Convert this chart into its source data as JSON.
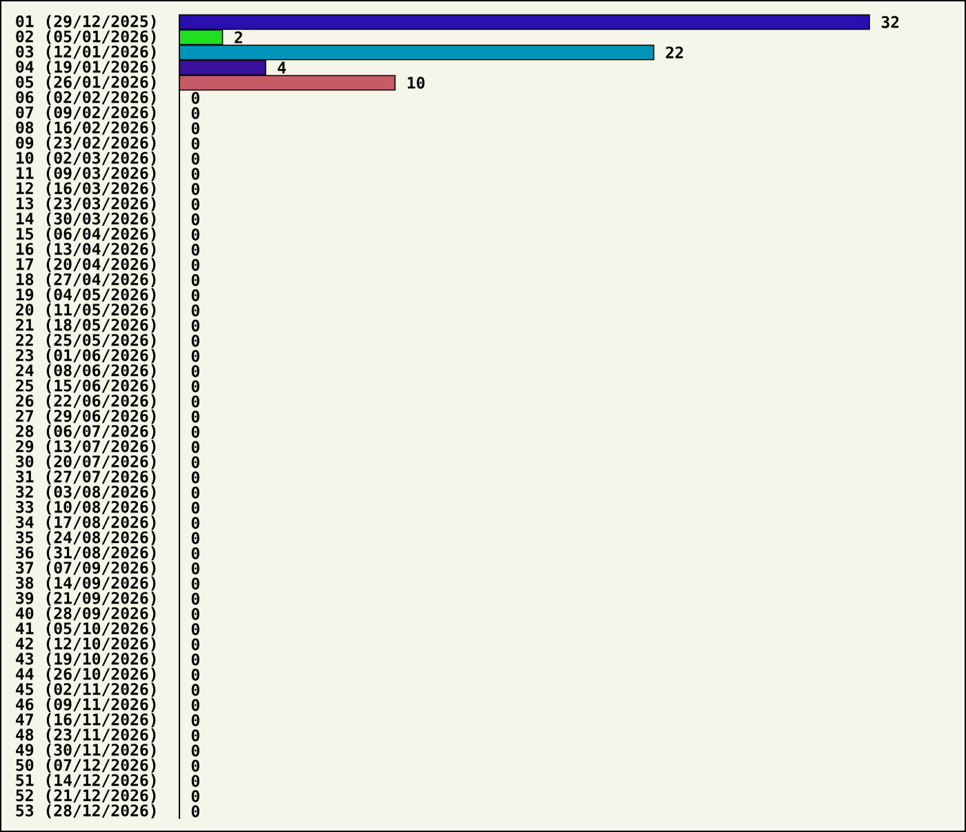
{
  "chart_data": {
    "type": "bar",
    "orientation": "horizontal",
    "data_labels": true,
    "tick_labels": "y",
    "categories": [
      "01 (29/12/2025)",
      "02 (05/01/2026)",
      "03 (12/01/2026)",
      "04 (19/01/2026)",
      "05 (26/01/2026)",
      "06 (02/02/2026)",
      "07 (09/02/2026)",
      "08 (16/02/2026)",
      "09 (23/02/2026)",
      "10 (02/03/2026)",
      "11 (09/03/2026)",
      "12 (16/03/2026)",
      "13 (23/03/2026)",
      "14 (30/03/2026)",
      "15 (06/04/2026)",
      "16 (13/04/2026)",
      "17 (20/04/2026)",
      "18 (27/04/2026)",
      "19 (04/05/2026)",
      "20 (11/05/2026)",
      "21 (18/05/2026)",
      "22 (25/05/2026)",
      "23 (01/06/2026)",
      "24 (08/06/2026)",
      "25 (15/06/2026)",
      "26 (22/06/2026)",
      "27 (29/06/2026)",
      "28 (06/07/2026)",
      "29 (13/07/2026)",
      "30 (20/07/2026)",
      "31 (27/07/2026)",
      "32 (03/08/2026)",
      "33 (10/08/2026)",
      "34 (17/08/2026)",
      "35 (24/08/2026)",
      "36 (31/08/2026)",
      "37 (07/09/2026)",
      "38 (14/09/2026)",
      "39 (21/09/2026)",
      "40 (28/09/2026)",
      "41 (05/10/2026)",
      "42 (12/10/2026)",
      "43 (19/10/2026)",
      "44 (26/10/2026)",
      "45 (02/11/2026)",
      "46 (09/11/2026)",
      "47 (16/11/2026)",
      "48 (23/11/2026)",
      "49 (30/11/2026)",
      "50 (07/12/2026)",
      "51 (14/12/2026)",
      "52 (21/12/2026)",
      "53 (28/12/2026)"
    ],
    "values": [
      32,
      2,
      22,
      4,
      10,
      0,
      0,
      0,
      0,
      0,
      0,
      0,
      0,
      0,
      0,
      0,
      0,
      0,
      0,
      0,
      0,
      0,
      0,
      0,
      0,
      0,
      0,
      0,
      0,
      0,
      0,
      0,
      0,
      0,
      0,
      0,
      0,
      0,
      0,
      0,
      0,
      0,
      0,
      0,
      0,
      0,
      0,
      0,
      0,
      0,
      0,
      0,
      0
    ],
    "colors": [
      "#2a0fb0",
      "#1ee01e",
      "#0094b8",
      "#3a10a0",
      "#c85a68",
      "#2a0fb0",
      "#2a0fb0",
      "#2a0fb0",
      "#2a0fb0",
      "#2a0fb0",
      "#2a0fb0",
      "#2a0fb0",
      "#2a0fb0",
      "#2a0fb0",
      "#2a0fb0",
      "#2a0fb0",
      "#2a0fb0",
      "#2a0fb0",
      "#2a0fb0",
      "#2a0fb0",
      "#2a0fb0",
      "#2a0fb0",
      "#2a0fb0",
      "#2a0fb0",
      "#2a0fb0",
      "#2a0fb0",
      "#2a0fb0",
      "#2a0fb0",
      "#2a0fb0",
      "#2a0fb0",
      "#2a0fb0",
      "#2a0fb0",
      "#2a0fb0",
      "#2a0fb0",
      "#2a0fb0",
      "#2a0fb0",
      "#2a0fb0",
      "#2a0fb0",
      "#2a0fb0",
      "#2a0fb0",
      "#2a0fb0",
      "#2a0fb0",
      "#2a0fb0",
      "#2a0fb0",
      "#2a0fb0",
      "#2a0fb0",
      "#2a0fb0",
      "#2a0fb0",
      "#2a0fb0",
      "#2a0fb0",
      "#2a0fb0",
      "#2a0fb0",
      "#2a0fb0"
    ]
  }
}
